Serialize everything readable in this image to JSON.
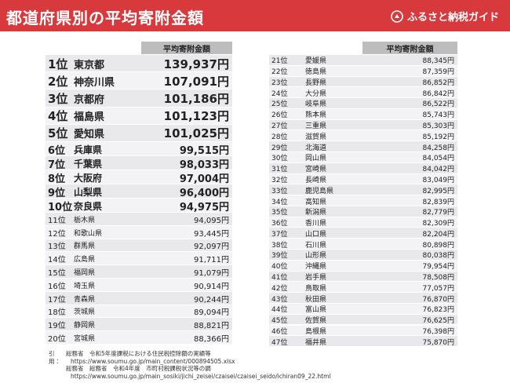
{
  "header": {
    "title": "都道府県別の平均寄附金額",
    "logo": "ふるさと納税ガイド"
  },
  "left_table": {
    "header": "平均寄附金額",
    "rows": [
      [
        "1位",
        "東京都",
        "139,937円"
      ],
      [
        "2位",
        "神奈川県",
        "107,091円"
      ],
      [
        "3位",
        "京都府",
        "101,186円"
      ],
      [
        "4位",
        "福島県",
        "101,123円"
      ],
      [
        "5位",
        "愛知県",
        "101,025円"
      ],
      [
        "6位",
        "兵庫県",
        "99,515円"
      ],
      [
        "7位",
        "千葉県",
        "98,033円"
      ],
      [
        "8位",
        "大阪府",
        "97,004円"
      ],
      [
        "9位",
        "山梨県",
        "96,400円"
      ],
      [
        "10位",
        "奈良県",
        "94,975円"
      ],
      [
        "11位",
        "栃木県",
        "94,095円"
      ],
      [
        "12位",
        "和歌山県",
        "93,445円"
      ],
      [
        "13位",
        "群馬県",
        "92,097円"
      ],
      [
        "14位",
        "広島県",
        "91,711円"
      ],
      [
        "15位",
        "福岡県",
        "91,079円"
      ],
      [
        "16位",
        "埼玉県",
        "90,914円"
      ],
      [
        "17位",
        "青森県",
        "90,244円"
      ],
      [
        "18位",
        "茨城県",
        "89,094円"
      ],
      [
        "19位",
        "静岡県",
        "88,821円"
      ],
      [
        "20位",
        "宮城県",
        "88,366円"
      ]
    ]
  },
  "right_table": {
    "header": "平均寄附金額",
    "rows": [
      [
        "21位",
        "愛媛県",
        "88,345円"
      ],
      [
        "22位",
        "徳島県",
        "87,359円"
      ],
      [
        "23位",
        "長野県",
        "86,852円"
      ],
      [
        "24位",
        "大分県",
        "86,842円"
      ],
      [
        "25位",
        "岐阜県",
        "86,522円"
      ],
      [
        "26位",
        "熊本県",
        "85,743円"
      ],
      [
        "27位",
        "三重県",
        "85,303円"
      ],
      [
        "28位",
        "滋賀県",
        "85,192円"
      ],
      [
        "29位",
        "北海道",
        "84,258円"
      ],
      [
        "30位",
        "岡山県",
        "84,054円"
      ],
      [
        "31位",
        "宮崎県",
        "84,042円"
      ],
      [
        "32位",
        "長崎県",
        "83,049円"
      ],
      [
        "33位",
        "鹿児島県",
        "82,995円"
      ],
      [
        "34位",
        "高知県",
        "82,839円"
      ],
      [
        "35位",
        "新潟県",
        "82,779円"
      ],
      [
        "36位",
        "香川県",
        "82,309円"
      ],
      [
        "37位",
        "山口県",
        "82,204円"
      ],
      [
        "38位",
        "石川県",
        "80,898円"
      ],
      [
        "39位",
        "山形県",
        "80,038円"
      ],
      [
        "40位",
        "沖縄県",
        "79,954円"
      ],
      [
        "41位",
        "岩手県",
        "78,508円"
      ],
      [
        "42位",
        "鳥取県",
        "77,057円"
      ],
      [
        "43位",
        "秋田県",
        "76,870円"
      ],
      [
        "44位",
        "富山県",
        "76,823円"
      ],
      [
        "45位",
        "佐賀県",
        "76,625円"
      ],
      [
        "46位",
        "島根県",
        "76,398円"
      ],
      [
        "47位",
        "福井県",
        "75,870円"
      ]
    ]
  },
  "footnote": {
    "label": "引用：",
    "lines": [
      "総務省　令和5年度課税における住民税控除額の実績等",
      "https://www.soumu.go.jp/main_content/000894505.xlsx",
      "総務省　総務省　令和4年度　市町村税課税状況等の調",
      "https://www.soumu.go.jp/main_sosiki/jichi_zeisei/czaisei/czaisei_seido/ichiran09_22.html"
    ]
  }
}
